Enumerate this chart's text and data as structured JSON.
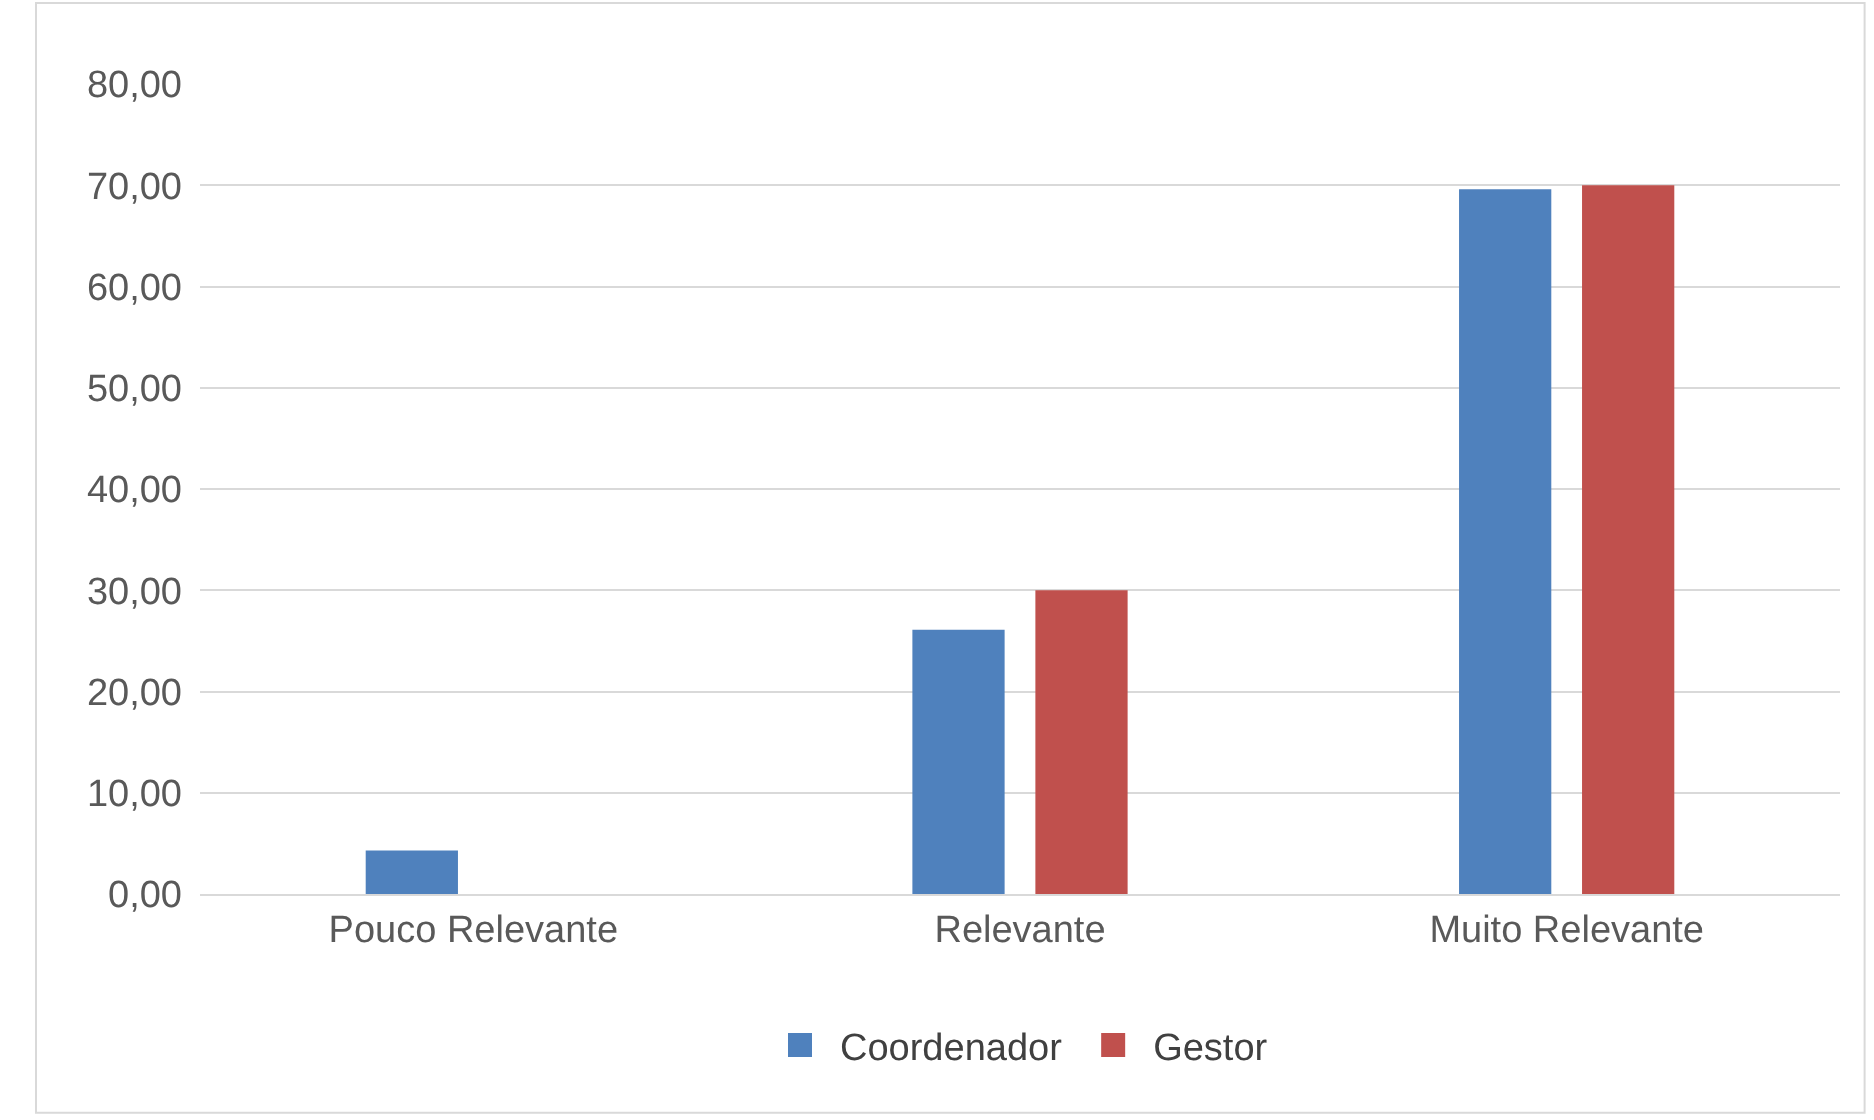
{
  "chart_data": {
    "type": "bar",
    "categories": [
      "Pouco Relevante",
      "Relevante",
      "Muito Relevante"
    ],
    "series": [
      {
        "name": "Coordenador",
        "color": "#4f81bd",
        "values": [
          4.3,
          26.1,
          69.6
        ]
      },
      {
        "name": "Gestor",
        "color": "#c0504d",
        "values": [
          0,
          30,
          70
        ]
      }
    ],
    "ylim": [
      0,
      80
    ],
    "yticks": [
      {
        "value": 0,
        "label": "0,00"
      },
      {
        "value": 10,
        "label": "10,00"
      },
      {
        "value": 20,
        "label": "20,00"
      },
      {
        "value": 30,
        "label": "30,00"
      },
      {
        "value": 40,
        "label": "40,00"
      },
      {
        "value": 50,
        "label": "50,00"
      },
      {
        "value": 60,
        "label": "60,00"
      },
      {
        "value": 70,
        "label": "70,00"
      },
      {
        "value": 80,
        "label": "80,00"
      }
    ],
    "grid": "y",
    "legend": "bottom"
  }
}
